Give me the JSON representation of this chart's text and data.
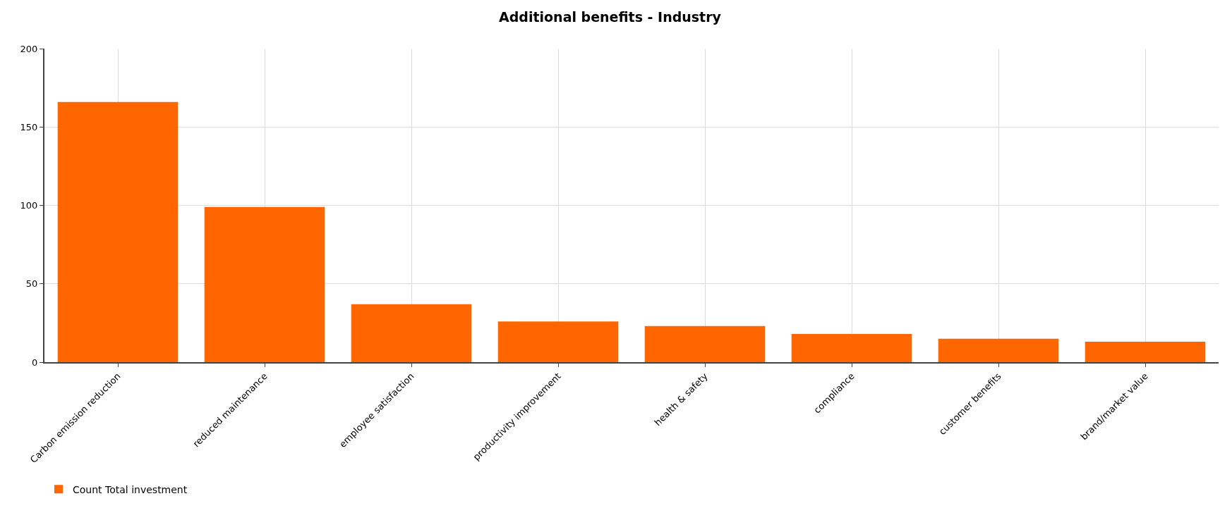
{
  "chart_data": {
    "type": "bar",
    "title": "Additional benefits - Industry",
    "categories": [
      "Carbon emission reduction",
      "reduced maintenance",
      "employee satisfaction",
      "productivity improvement",
      "health & safety",
      "compliance",
      "customer benefits",
      "brand/market value"
    ],
    "series": [
      {
        "name": "Count Total investment",
        "color": "#ff6600",
        "values": [
          166,
          99,
          37,
          26,
          23,
          18,
          15,
          13
        ]
      }
    ],
    "ylim": [
      0,
      200
    ],
    "yticks": [
      0,
      50,
      100,
      150,
      200
    ],
    "grid": true,
    "legend": "bottom left"
  }
}
